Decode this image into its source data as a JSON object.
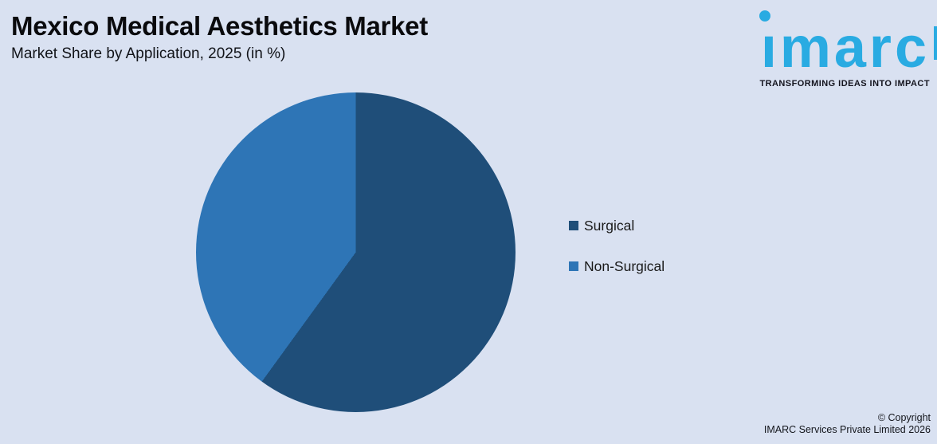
{
  "page": {
    "title": "Mexico Medical Aesthetics Market",
    "subtitle": "Market Share by Application, 2025 (in %)"
  },
  "logo": {
    "text": "imarc",
    "tagline": "TRANSFORMING IDEAS INTO IMPACT"
  },
  "chart_data": {
    "type": "pie",
    "title": "Mexico Medical Aesthetics Market — Market Share by Application, 2025 (in %)",
    "labels": [
      "Surgical",
      "Non-Surgical"
    ],
    "values": [
      60,
      40
    ],
    "unit": "%",
    "colors": [
      "#1F4E79",
      "#2E75B6"
    ],
    "start_angle_deg": 0,
    "direction": "clockwise",
    "legend_position": "right",
    "data_labels_shown": false
  },
  "footer": {
    "line1": "© Copyright",
    "line2": "IMARC Services Private Limited 2026"
  },
  "colors": {
    "background": "#D9E1F1",
    "title_text": "#0A0A0D",
    "logo_blue": "#29ABE2",
    "tagline_text": "#14141E",
    "legend_text": "#1A1A1A",
    "slice_surgical": "#1F4E79",
    "slice_non_surgical": "#2E75B6"
  }
}
